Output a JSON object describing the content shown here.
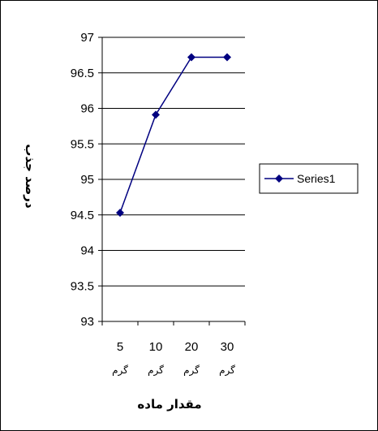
{
  "chart_data": {
    "type": "line",
    "categories": [
      "5 گرم",
      "10 گرم",
      "20 گرم",
      "30 گرم"
    ],
    "category_numbers": [
      "5",
      "10",
      "20",
      "30"
    ],
    "category_units": [
      "گرم",
      "گرم",
      "گرم",
      "گرم"
    ],
    "series": [
      {
        "name": "Series1",
        "values": [
          94.53,
          95.91,
          96.72,
          96.72
        ],
        "color": "#000080",
        "marker": "diamond"
      }
    ],
    "xlabel": "مقدار ماده",
    "ylabel": "درصد جذب",
    "ylim": [
      93,
      97
    ],
    "yticks": [
      "93",
      "93.5",
      "94",
      "94.5",
      "95",
      "95.5",
      "96",
      "96.5",
      "97"
    ],
    "grid": true,
    "legend_position": "right"
  }
}
